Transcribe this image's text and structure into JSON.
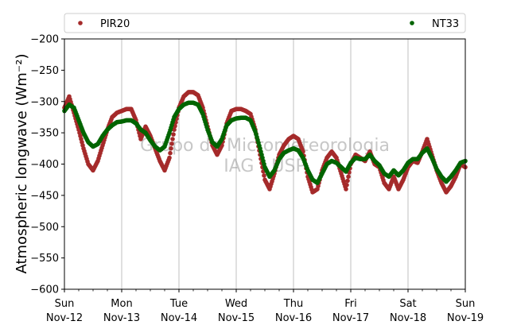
{
  "chart_data": {
    "type": "scatter",
    "title": "",
    "xlabel": "",
    "ylabel": "Atmospheric longwave (Wm⁻²)",
    "ylim": [
      -600,
      -200
    ],
    "xlim": [
      "2017-11-12T00:00",
      "2017-11-19T00:00"
    ],
    "grid": "vertical",
    "legend": "top, above plot",
    "watermark": [
      "Grupo de Micrometeorologia",
      "IAG - USP"
    ],
    "yticks": [
      -600,
      -550,
      -500,
      -450,
      -400,
      -350,
      -300,
      -250,
      -200
    ],
    "xticks": [
      {
        "day": "Sun",
        "date": "Nov-12"
      },
      {
        "day": "Mon",
        "date": "Nov-13"
      },
      {
        "day": "Tue",
        "date": "Nov-14"
      },
      {
        "day": "Wed",
        "date": "Nov-15"
      },
      {
        "day": "Thu",
        "date": "Nov-16"
      },
      {
        "day": "Fri",
        "date": "Nov-17"
      },
      {
        "day": "Sat",
        "date": "Nov-18"
      },
      {
        "day": "Sun",
        "date": "Nov-19"
      }
    ],
    "series": [
      {
        "name": "PIR20",
        "color": "#a52a2a",
        "points": [
          [
            "2017-11-12T00:00",
            -310
          ],
          [
            "2017-11-12T02:00",
            -292
          ],
          [
            "2017-11-12T04:00",
            -318
          ],
          [
            "2017-11-12T06:00",
            -345
          ],
          [
            "2017-11-12T08:00",
            -375
          ],
          [
            "2017-11-12T10:00",
            -400
          ],
          [
            "2017-11-12T12:00",
            -410
          ],
          [
            "2017-11-12T14:00",
            -395
          ],
          [
            "2017-11-12T16:00",
            -370
          ],
          [
            "2017-11-12T18:00",
            -345
          ],
          [
            "2017-11-12T20:00",
            -325
          ],
          [
            "2017-11-12T22:00",
            -318
          ],
          [
            "2017-11-13T00:00",
            -315
          ],
          [
            "2017-11-13T02:00",
            -312
          ],
          [
            "2017-11-13T04:00",
            -312
          ],
          [
            "2017-11-13T06:00",
            -330
          ],
          [
            "2017-11-13T08:00",
            -360
          ],
          [
            "2017-11-13T10:00",
            -340
          ],
          [
            "2017-11-13T12:00",
            -355
          ],
          [
            "2017-11-13T14:00",
            -375
          ],
          [
            "2017-11-13T16:00",
            -395
          ],
          [
            "2017-11-13T18:00",
            -410
          ],
          [
            "2017-11-13T20:00",
            -390
          ],
          [
            "2017-11-13T22:00",
            -345
          ],
          [
            "2017-11-14T00:00",
            -310
          ],
          [
            "2017-11-14T02:00",
            -292
          ],
          [
            "2017-11-14T04:00",
            -285
          ],
          [
            "2017-11-14T06:00",
            -285
          ],
          [
            "2017-11-14T08:00",
            -290
          ],
          [
            "2017-11-14T10:00",
            -310
          ],
          [
            "2017-11-14T12:00",
            -340
          ],
          [
            "2017-11-14T14:00",
            -370
          ],
          [
            "2017-11-14T16:00",
            -385
          ],
          [
            "2017-11-14T18:00",
            -370
          ],
          [
            "2017-11-14T20:00",
            -335
          ],
          [
            "2017-11-14T22:00",
            -315
          ],
          [
            "2017-11-15T00:00",
            -312
          ],
          [
            "2017-11-15T02:00",
            -312
          ],
          [
            "2017-11-15T04:00",
            -315
          ],
          [
            "2017-11-15T06:00",
            -320
          ],
          [
            "2017-11-15T08:00",
            -345
          ],
          [
            "2017-11-15T10:00",
            -385
          ],
          [
            "2017-11-15T12:00",
            -425
          ],
          [
            "2017-11-15T14:00",
            -440
          ],
          [
            "2017-11-15T16:00",
            -415
          ],
          [
            "2017-11-15T18:00",
            -385
          ],
          [
            "2017-11-15T20:00",
            -370
          ],
          [
            "2017-11-15T22:00",
            -360
          ],
          [
            "2017-11-16T00:00",
            -355
          ],
          [
            "2017-11-16T02:00",
            -360
          ],
          [
            "2017-11-16T04:00",
            -380
          ],
          [
            "2017-11-16T06:00",
            -420
          ],
          [
            "2017-11-16T08:00",
            -445
          ],
          [
            "2017-11-16T10:00",
            -440
          ],
          [
            "2017-11-16T12:00",
            -410
          ],
          [
            "2017-11-16T14:00",
            -390
          ],
          [
            "2017-11-16T16:00",
            -380
          ],
          [
            "2017-11-16T18:00",
            -390
          ],
          [
            "2017-11-16T20:00",
            -415
          ],
          [
            "2017-11-16T22:00",
            -440
          ],
          [
            "2017-11-17T00:00",
            -400
          ],
          [
            "2017-11-17T02:00",
            -385
          ],
          [
            "2017-11-17T04:00",
            -390
          ],
          [
            "2017-11-17T06:00",
            -395
          ],
          [
            "2017-11-17T08:00",
            -380
          ],
          [
            "2017-11-17T10:00",
            -400
          ],
          [
            "2017-11-17T12:00",
            -405
          ],
          [
            "2017-11-17T14:00",
            -430
          ],
          [
            "2017-11-17T16:00",
            -440
          ],
          [
            "2017-11-17T18:00",
            -420
          ],
          [
            "2017-11-17T20:00",
            -440
          ],
          [
            "2017-11-17T22:00",
            -425
          ],
          [
            "2017-11-18T00:00",
            -405
          ],
          [
            "2017-11-18T02:00",
            -395
          ],
          [
            "2017-11-18T04:00",
            -398
          ],
          [
            "2017-11-18T06:00",
            -380
          ],
          [
            "2017-11-18T08:00",
            -360
          ],
          [
            "2017-11-18T10:00",
            -385
          ],
          [
            "2017-11-18T12:00",
            -410
          ],
          [
            "2017-11-18T14:00",
            -430
          ],
          [
            "2017-11-18T16:00",
            -445
          ],
          [
            "2017-11-18T18:00",
            -435
          ],
          [
            "2017-11-18T20:00",
            -420
          ],
          [
            "2017-11-18T22:00",
            -400
          ],
          [
            "2017-11-19T00:00",
            -405
          ]
        ]
      },
      {
        "name": "NT33",
        "color": "#006400",
        "points": [
          [
            "2017-11-12T00:00",
            -315
          ],
          [
            "2017-11-12T02:00",
            -305
          ],
          [
            "2017-11-12T04:00",
            -310
          ],
          [
            "2017-11-12T06:00",
            -330
          ],
          [
            "2017-11-12T08:00",
            -350
          ],
          [
            "2017-11-12T10:00",
            -365
          ],
          [
            "2017-11-12T12:00",
            -372
          ],
          [
            "2017-11-12T14:00",
            -368
          ],
          [
            "2017-11-12T16:00",
            -355
          ],
          [
            "2017-11-12T18:00",
            -345
          ],
          [
            "2017-11-12T20:00",
            -338
          ],
          [
            "2017-11-12T22:00",
            -333
          ],
          [
            "2017-11-13T00:00",
            -332
          ],
          [
            "2017-11-13T02:00",
            -330
          ],
          [
            "2017-11-13T04:00",
            -330
          ],
          [
            "2017-11-13T06:00",
            -335
          ],
          [
            "2017-11-13T08:00",
            -345
          ],
          [
            "2017-11-13T10:00",
            -350
          ],
          [
            "2017-11-13T12:00",
            -362
          ],
          [
            "2017-11-13T14:00",
            -372
          ],
          [
            "2017-11-13T16:00",
            -378
          ],
          [
            "2017-11-13T18:00",
            -372
          ],
          [
            "2017-11-13T20:00",
            -350
          ],
          [
            "2017-11-13T22:00",
            -325
          ],
          [
            "2017-11-14T00:00",
            -312
          ],
          [
            "2017-11-14T02:00",
            -305
          ],
          [
            "2017-11-14T04:00",
            -302
          ],
          [
            "2017-11-14T06:00",
            -302
          ],
          [
            "2017-11-14T08:00",
            -305
          ],
          [
            "2017-11-14T10:00",
            -320
          ],
          [
            "2017-11-14T12:00",
            -345
          ],
          [
            "2017-11-14T14:00",
            -365
          ],
          [
            "2017-11-14T16:00",
            -372
          ],
          [
            "2017-11-14T18:00",
            -360
          ],
          [
            "2017-11-14T20:00",
            -338
          ],
          [
            "2017-11-14T22:00",
            -330
          ],
          [
            "2017-11-15T00:00",
            -327
          ],
          [
            "2017-11-15T02:00",
            -326
          ],
          [
            "2017-11-15T04:00",
            -326
          ],
          [
            "2017-11-15T06:00",
            -330
          ],
          [
            "2017-11-15T08:00",
            -348
          ],
          [
            "2017-11-15T10:00",
            -375
          ],
          [
            "2017-11-15T12:00",
            -405
          ],
          [
            "2017-11-15T14:00",
            -420
          ],
          [
            "2017-11-15T16:00",
            -410
          ],
          [
            "2017-11-15T18:00",
            -392
          ],
          [
            "2017-11-15T20:00",
            -382
          ],
          [
            "2017-11-15T22:00",
            -378
          ],
          [
            "2017-11-16T00:00",
            -375
          ],
          [
            "2017-11-16T02:00",
            -378
          ],
          [
            "2017-11-16T04:00",
            -390
          ],
          [
            "2017-11-16T06:00",
            -410
          ],
          [
            "2017-11-16T08:00",
            -425
          ],
          [
            "2017-11-16T10:00",
            -430
          ],
          [
            "2017-11-16T12:00",
            -415
          ],
          [
            "2017-11-16T14:00",
            -400
          ],
          [
            "2017-11-16T16:00",
            -395
          ],
          [
            "2017-11-16T18:00",
            -398
          ],
          [
            "2017-11-16T20:00",
            -405
          ],
          [
            "2017-11-16T22:00",
            -412
          ],
          [
            "2017-11-17T00:00",
            -398
          ],
          [
            "2017-11-17T02:00",
            -390
          ],
          [
            "2017-11-17T04:00",
            -392
          ],
          [
            "2017-11-17T06:00",
            -392
          ],
          [
            "2017-11-17T08:00",
            -385
          ],
          [
            "2017-11-17T10:00",
            -395
          ],
          [
            "2017-11-17T12:00",
            -402
          ],
          [
            "2017-11-17T14:00",
            -415
          ],
          [
            "2017-11-17T16:00",
            -420
          ],
          [
            "2017-11-17T18:00",
            -410
          ],
          [
            "2017-11-17T20:00",
            -418
          ],
          [
            "2017-11-17T22:00",
            -410
          ],
          [
            "2017-11-18T00:00",
            -398
          ],
          [
            "2017-11-18T02:00",
            -392
          ],
          [
            "2017-11-18T04:00",
            -392
          ],
          [
            "2017-11-18T06:00",
            -382
          ],
          [
            "2017-11-18T08:00",
            -375
          ],
          [
            "2017-11-18T10:00",
            -390
          ],
          [
            "2017-11-18T12:00",
            -408
          ],
          [
            "2017-11-18T14:00",
            -420
          ],
          [
            "2017-11-18T16:00",
            -428
          ],
          [
            "2017-11-18T18:00",
            -420
          ],
          [
            "2017-11-18T20:00",
            -410
          ],
          [
            "2017-11-18T22:00",
            -398
          ],
          [
            "2017-11-19T00:00",
            -395
          ]
        ]
      }
    ]
  }
}
